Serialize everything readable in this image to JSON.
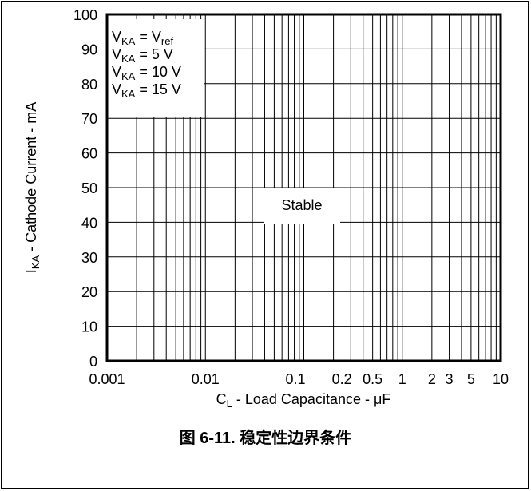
{
  "chart_data": {
    "type": "region",
    "x_scale": "log",
    "xlim": [
      0.001,
      10
    ],
    "ylim": [
      0,
      100
    ],
    "y_ticks": [
      0,
      10,
      20,
      30,
      40,
      50,
      60,
      70,
      80,
      90,
      100
    ],
    "x_tick_labels": [
      {
        "value": 0.001,
        "label": "0.001"
      },
      {
        "value": 0.01,
        "label": "0.01"
      },
      {
        "value": 0.1,
        "label": "0.1"
      },
      {
        "value": 0.2,
        "label": "0.2"
      },
      {
        "value": 0.5,
        "label": "0.5"
      },
      {
        "value": 1,
        "label": "1"
      },
      {
        "value": 2,
        "label": "2"
      },
      {
        "value": 3,
        "label": "3"
      },
      {
        "value": 5,
        "label": "5"
      },
      {
        "value": 10,
        "label": "10"
      }
    ],
    "ylabel": {
      "main": "I",
      "sub": "KA",
      "rest": " - Cathode Current - mA"
    },
    "xlabel": {
      "main": "C",
      "sub": "L",
      "rest": " - Load Capacitance - μF"
    },
    "grid": true,
    "legend": [
      {
        "pre": "V",
        "sub": "KA",
        "eq": " = V",
        "sub2": "ref",
        "post": ""
      },
      {
        "pre": "V",
        "sub": "KA",
        "eq": " = 5 V",
        "sub2": "",
        "post": ""
      },
      {
        "pre": "V",
        "sub": "KA",
        "eq": " = 10 V",
        "sub2": "",
        "post": ""
      },
      {
        "pre": "V",
        "sub": "KA",
        "eq": " = 15 V",
        "sub2": "",
        "post": ""
      }
    ],
    "legend_position": "top-left",
    "annotations": [
      {
        "text": "Stable"
      }
    ]
  },
  "caption": "图 6-11. 稳定性边界条件"
}
